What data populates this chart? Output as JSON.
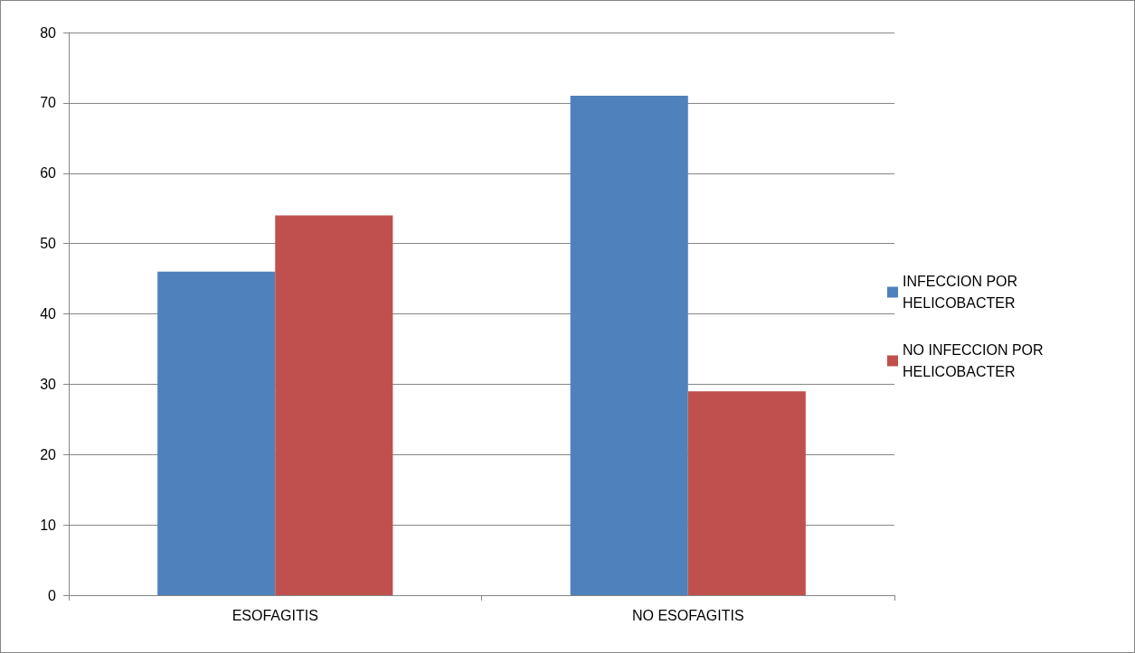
{
  "chart_data": {
    "type": "bar",
    "categories": [
      "ESOFAGITIS",
      "NO ESOFAGITIS"
    ],
    "series": [
      {
        "name": "INFECCION POR HELICOBACTER",
        "color": "#4f81bd",
        "values": [
          46,
          71
        ]
      },
      {
        "name": "NO INFECCION POR HELICOBACTER",
        "color": "#c0504d",
        "values": [
          54,
          29
        ]
      }
    ],
    "ylim": [
      0,
      80
    ],
    "yticks": [
      0,
      10,
      20,
      30,
      40,
      50,
      60,
      70,
      80
    ],
    "grid": "y",
    "legend": "right"
  }
}
